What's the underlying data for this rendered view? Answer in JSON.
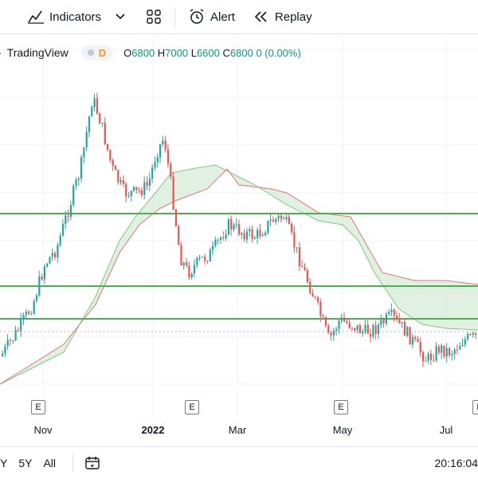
{
  "toolbar": {
    "indicators_label": "Indicators",
    "alert_label": "Alert",
    "replay_label": "Replay"
  },
  "legend": {
    "symbol": "TradingView",
    "interval_badge": "D",
    "ohlc": {
      "o_label": "O",
      "o": "6800",
      "h_label": "H",
      "h": "7000",
      "l_label": "L",
      "l": "6600",
      "c_label": "C",
      "c": "6800",
      "change": "0 (0.00%)"
    }
  },
  "x_axis": {
    "ticks": [
      "Nov",
      "2022",
      "Mar",
      "May",
      "Jul"
    ]
  },
  "event_marker": "E",
  "bottom": {
    "ranges": [
      "Y",
      "5Y",
      "All"
    ],
    "time": "20:16:04"
  },
  "colors": {
    "up": "#26a69a",
    "down": "#ef5350",
    "hline": "#4caf50",
    "cloud_up": "#c8e6c9",
    "cloud_down": "#ffcdd2"
  },
  "chart_data": {
    "type": "candlestick",
    "horizontal_lines": 3,
    "x_ticks": [
      "Nov",
      "2022",
      "Mar",
      "May",
      "Jul"
    ],
    "event_markers": [
      "E",
      "E",
      "E",
      "E"
    ]
  }
}
